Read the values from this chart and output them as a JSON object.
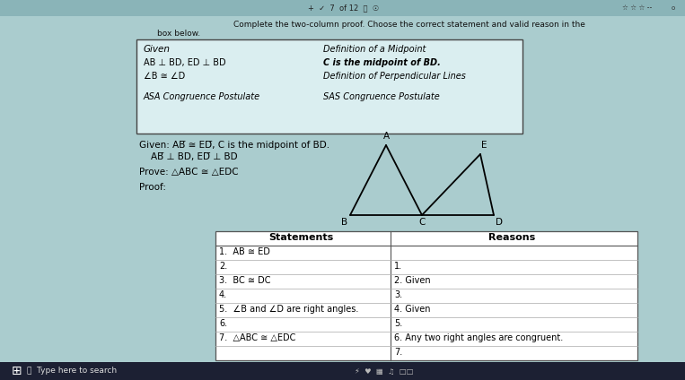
{
  "bg_color": "#aaccce",
  "top_bar_color": "#8ab4b8",
  "white": "#ffffff",
  "box_border": "#555555",
  "choice_box": {
    "left_col": [
      "Given",
      "AB ⊥ BD, ED ⊥ BD",
      "∠B ≅ ∠D",
      "ASA Congruence Postulate"
    ],
    "right_col": [
      "Definition of a Midpoint",
      "C is the midpoint of BD.",
      "Definition of Perpendicular Lines",
      "SAS Congruence Postulate"
    ]
  },
  "instruction": "Complete the two-column proof. Choose the correct statement and valid reason in the box below.",
  "given_line1": "Given: AB ≅ ED, C is the midpoint of BD.",
  "given_line2": "      AB ⊥ BD, ED ⊥ BD",
  "prove_line": "Prove: △ABC ≅ △EDC",
  "proof_label": "Proof:",
  "table_rows_left": [
    "1.  AB ≅ ED",
    "2.",
    "3.  BC ≅ DC",
    "4.",
    "5.  ∠B and ∠D are right angles.",
    "6.",
    "7.  △ABC ≅ △EDC"
  ],
  "table_rows_right": [
    "",
    "1.",
    "2. Given",
    "3.",
    "4. Given",
    "5.",
    "6. Any two right angles are congruent.",
    "7."
  ],
  "taskbar_color": "#1c2033",
  "taskbar_text": "⊞   Type here to search"
}
